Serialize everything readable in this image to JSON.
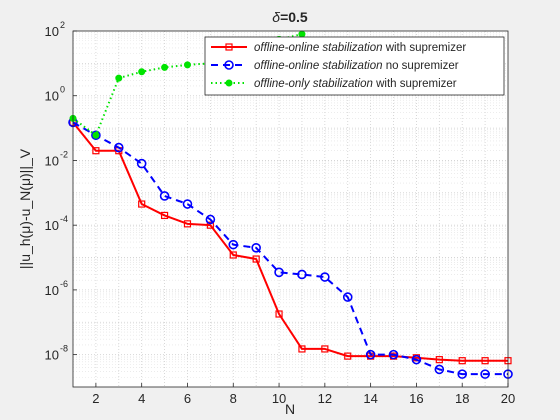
{
  "chart_data": {
    "type": "line",
    "title_prefix": "δ",
    "title_suffix": "=0.5",
    "xlabel": "N",
    "ylabel": "||u_h(μ)-u_N(μ)||_V",
    "xlim": [
      1,
      20
    ],
    "ylim_exp": [
      -9,
      2
    ],
    "yscale": "log",
    "grid": "on",
    "legend_placement": "top-right",
    "x_ticks": [
      2,
      4,
      6,
      8,
      10,
      12,
      14,
      16,
      18,
      20
    ],
    "y_ticks_exp": [
      -8,
      -6,
      -4,
      -2,
      0,
      2
    ],
    "series": [
      {
        "key": "s1",
        "name_italic": "offline-online stabilization",
        "name_rest": " with supremizer",
        "color": "#ff0000",
        "line": "solid",
        "marker": "square",
        "x": [
          1,
          2,
          3,
          4,
          5,
          6,
          7,
          8,
          9,
          10,
          11,
          12,
          13,
          14,
          15,
          16,
          17,
          18,
          19,
          20
        ],
        "y": [
          0.15,
          0.02,
          0.02,
          0.00045,
          0.0002,
          0.00011,
          0.0001,
          1.2e-05,
          9e-06,
          1.8e-07,
          1.5e-08,
          1.5e-08,
          9e-09,
          9e-09,
          9e-09,
          8e-09,
          7e-09,
          6.5e-09,
          6.5e-09,
          6.5e-09
        ]
      },
      {
        "key": "s2",
        "name_italic": "offline-online stabilization",
        "name_rest": " no supremizer",
        "color": "#0000ff",
        "line": "dashed",
        "marker": "circle",
        "x": [
          1,
          2,
          3,
          4,
          5,
          6,
          7,
          8,
          9,
          10,
          11,
          12,
          13,
          14,
          15,
          16,
          17,
          18,
          19,
          20
        ],
        "y": [
          0.15,
          0.06,
          0.025,
          0.008,
          0.0008,
          0.00045,
          0.00015,
          2.5e-05,
          2e-05,
          3.5e-06,
          3e-06,
          2.5e-06,
          6e-07,
          1e-08,
          1e-08,
          7e-09,
          3.5e-09,
          2.5e-09,
          2.5e-09,
          2.5e-09
        ]
      },
      {
        "key": "s3",
        "name_italic": "offline-only stabilization",
        "name_rest": " with supremizer",
        "color": "#00e400",
        "line": "dotted",
        "marker": "dot",
        "x": [
          1,
          2,
          3,
          4,
          5,
          6,
          7,
          8,
          9,
          10,
          11
        ],
        "y": [
          0.2,
          0.06,
          3.5,
          5.5,
          7.5,
          9,
          10,
          15,
          40,
          55,
          80
        ]
      }
    ]
  }
}
